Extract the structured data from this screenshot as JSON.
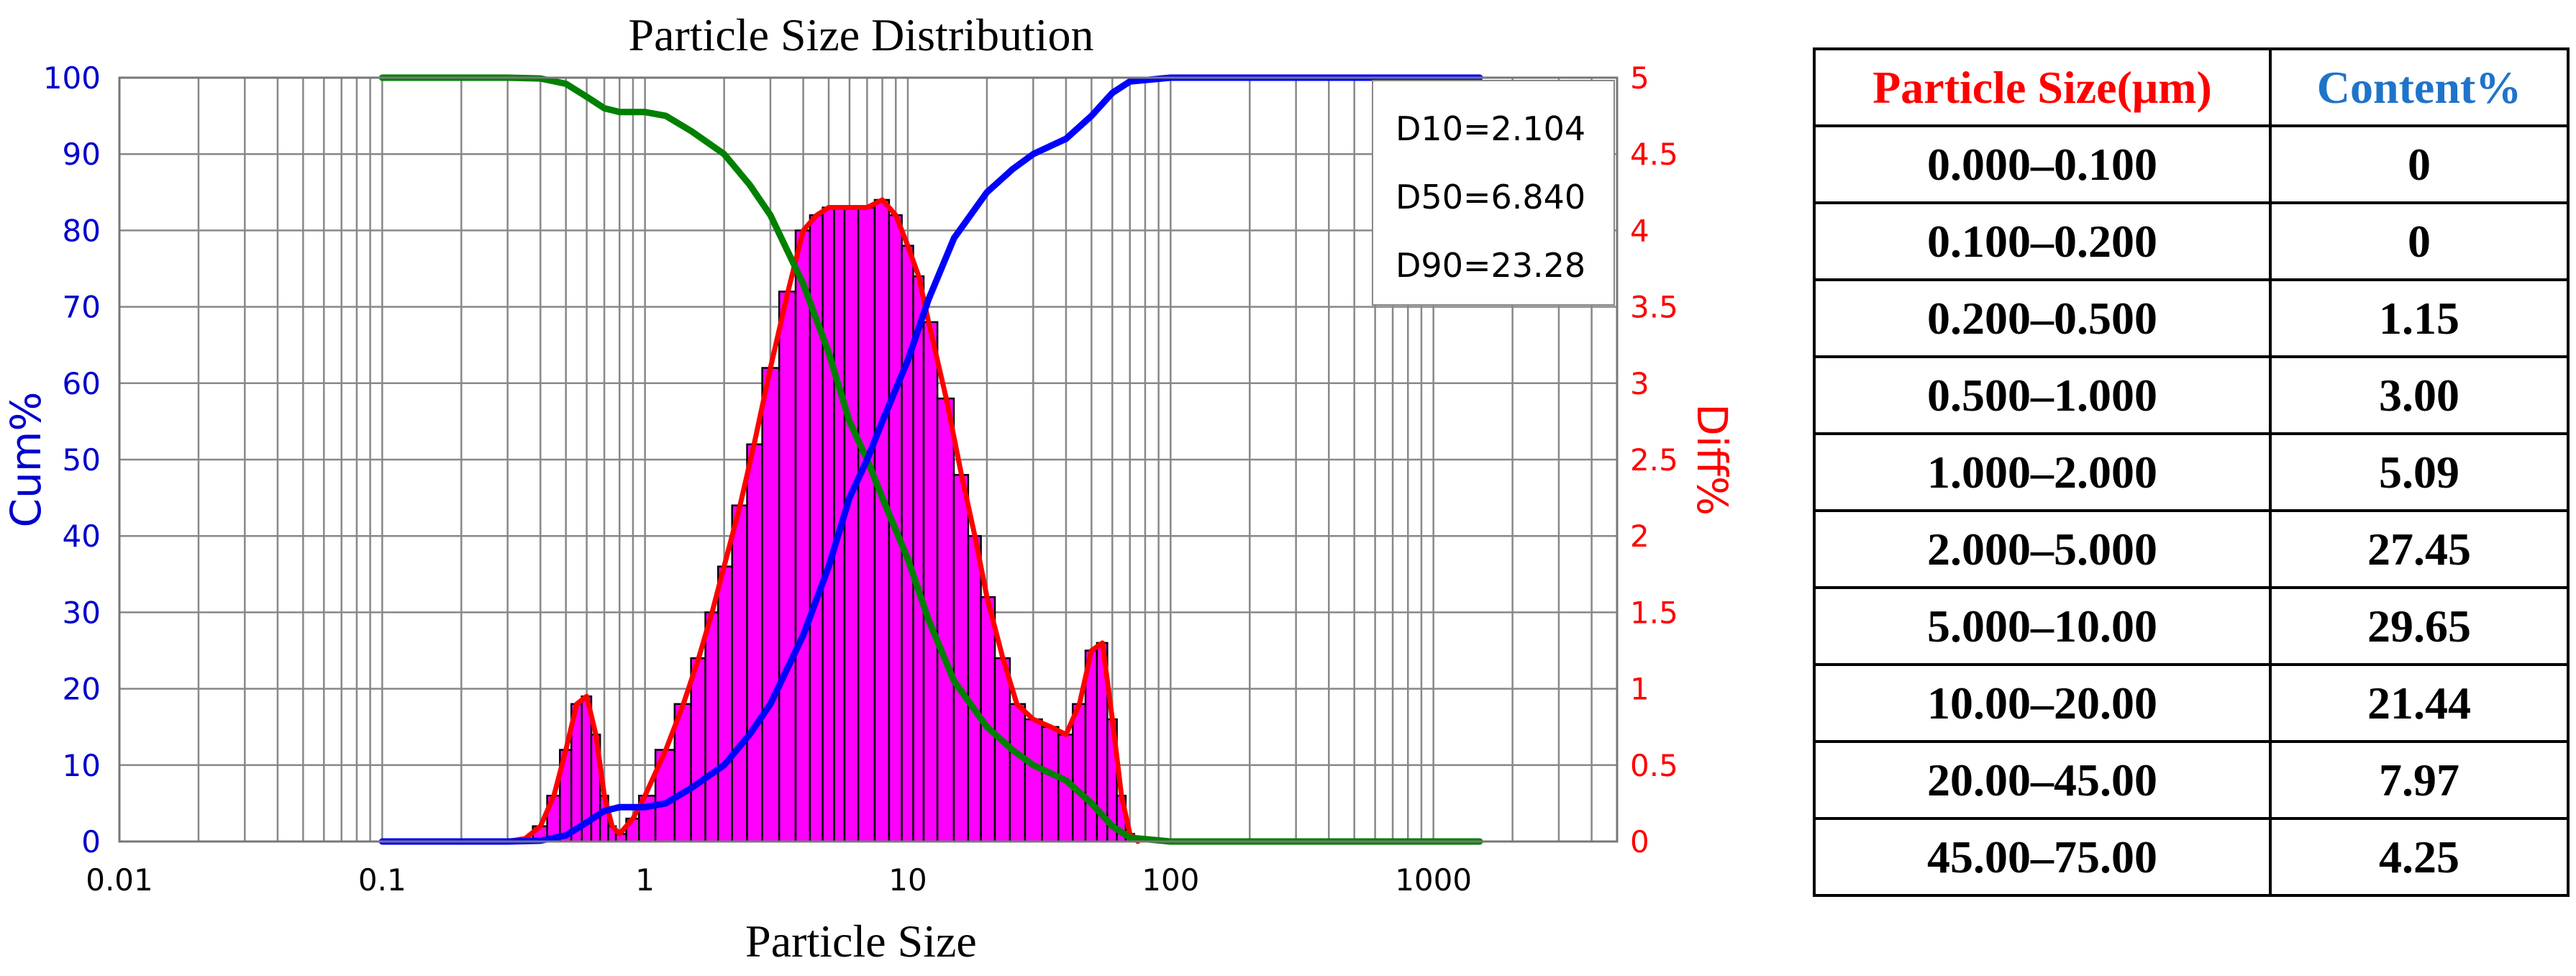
{
  "chart_data": {
    "type": "bar+line",
    "title": "Particle Size Distribution",
    "xlabel": "Particle Size",
    "ylabel_left": "Cum%",
    "ylabel_right": "Diff%",
    "x_scale": "log",
    "xlim": [
      0.01,
      5000
    ],
    "ylim_left": [
      0,
      100
    ],
    "ylim_right": [
      0,
      5
    ],
    "x_ticks": [
      0.01,
      0.1,
      1,
      10,
      100,
      1000
    ],
    "x_tick_labels": [
      "0.01",
      "0.1",
      "1",
      "10",
      "100",
      "1000"
    ],
    "y_left_ticks": [
      0,
      10,
      20,
      30,
      40,
      50,
      60,
      70,
      80,
      90,
      100
    ],
    "y_left_tick_labels": [
      "0",
      "10",
      "20",
      "30",
      "40",
      "50",
      "60",
      "70",
      "80",
      "90",
      "100"
    ],
    "y_right_ticks": [
      0,
      0.5,
      1,
      1.5,
      2,
      2.5,
      3,
      3.5,
      4,
      4.5,
      5
    ],
    "y_right_tick_labels": [
      "0",
      "0.5",
      "1",
      "1.5",
      "2",
      "2.5",
      "3",
      "3.5",
      "4",
      "4.5",
      "5"
    ],
    "grid": true,
    "colors": {
      "cumulative": "#0000ff",
      "retained": "#008000",
      "differential_line": "#ff0000",
      "bar_fill": "#ff00ff",
      "bar_edge": "#000000",
      "left_axis_text": "#0000cc",
      "right_axis_text": "#ff0000"
    },
    "annotations": [
      "D10=2.104",
      "D50=6.840",
      "D90=23.28"
    ],
    "series": [
      {
        "type": "line",
        "axis": "left",
        "x": [
          0.1,
          0.2,
          0.3,
          0.4,
          0.5,
          0.6,
          0.7,
          0.8,
          1.0,
          1.2,
          1.5,
          2.0,
          2.5,
          3.0,
          4.0,
          5.0,
          6.0,
          7.0,
          8.0,
          10,
          12,
          15,
          20,
          25,
          30,
          40,
          50,
          60,
          70,
          100,
          200,
          500,
          1000,
          1500
        ],
        "values": [
          0,
          0,
          0,
          0.1,
          0.8,
          2.5,
          4.0,
          4.5,
          4.5,
          5.0,
          7.0,
          10,
          14,
          18,
          27,
          36,
          45,
          50,
          55,
          63,
          71,
          79,
          85,
          88,
          90,
          92,
          95,
          98,
          99.5,
          100,
          100,
          100,
          100,
          100
        ]
      },
      {
        "type": "line",
        "axis": "left",
        "x": [
          0.1,
          0.2,
          0.3,
          0.4,
          0.5,
          0.6,
          0.7,
          0.8,
          1.0,
          1.2,
          1.5,
          2.0,
          2.5,
          3.0,
          4.0,
          5.0,
          6.0,
          7.0,
          8.0,
          10,
          12,
          15,
          20,
          25,
          30,
          40,
          50,
          60,
          70,
          100,
          200,
          500,
          1000,
          1500
        ],
        "values": [
          100,
          100,
          100,
          99.9,
          99.2,
          97.5,
          96.0,
          95.5,
          95.5,
          95.0,
          93.0,
          90,
          86,
          82,
          73,
          64,
          55,
          50,
          45,
          37,
          29,
          21,
          15,
          12,
          10,
          8,
          5,
          2,
          0.5,
          0,
          0,
          0,
          0,
          0
        ]
      },
      {
        "type": "bar",
        "axis": "right",
        "x": [
          0.35,
          0.4,
          0.45,
          0.5,
          0.55,
          0.6,
          0.65,
          0.7,
          0.75,
          0.8,
          0.9,
          1.0,
          1.2,
          1.4,
          1.6,
          1.8,
          2.0,
          2.3,
          2.6,
          3.0,
          3.5,
          4.0,
          4.5,
          5.0,
          5.5,
          6.0,
          7.0,
          8.0,
          9.0,
          10,
          11,
          12,
          14,
          16,
          18,
          20,
          23,
          26,
          30,
          35,
          40,
          45,
          50,
          55,
          60,
          65,
          70
        ],
        "values": [
          0.02,
          0.1,
          0.3,
          0.6,
          0.9,
          0.95,
          0.7,
          0.3,
          0.1,
          0.05,
          0.15,
          0.3,
          0.6,
          0.9,
          1.2,
          1.5,
          1.8,
          2.2,
          2.6,
          3.1,
          3.6,
          4.0,
          4.1,
          4.15,
          4.15,
          4.15,
          4.15,
          4.2,
          4.1,
          3.9,
          3.7,
          3.4,
          2.9,
          2.4,
          2.0,
          1.6,
          1.2,
          0.9,
          0.8,
          0.75,
          0.7,
          0.9,
          1.25,
          1.3,
          0.8,
          0.3,
          0.05
        ]
      },
      {
        "type": "line",
        "axis": "right",
        "x": [
          0.3,
          0.35,
          0.4,
          0.45,
          0.5,
          0.55,
          0.6,
          0.65,
          0.7,
          0.75,
          0.8,
          0.9,
          1.0,
          1.2,
          1.4,
          1.6,
          1.8,
          2.0,
          2.3,
          2.6,
          3.0,
          3.5,
          4.0,
          4.5,
          5.0,
          5.5,
          6.0,
          7.0,
          8.0,
          9.0,
          10,
          11,
          12,
          14,
          16,
          18,
          20,
          23,
          26,
          30,
          35,
          40,
          45,
          50,
          55,
          60,
          65,
          70,
          75
        ],
        "values": [
          0,
          0.02,
          0.1,
          0.3,
          0.6,
          0.9,
          0.95,
          0.7,
          0.3,
          0.1,
          0.05,
          0.15,
          0.3,
          0.6,
          0.9,
          1.2,
          1.5,
          1.8,
          2.2,
          2.6,
          3.1,
          3.6,
          4.0,
          4.1,
          4.15,
          4.15,
          4.15,
          4.15,
          4.2,
          4.1,
          3.9,
          3.7,
          3.4,
          2.9,
          2.4,
          2.0,
          1.6,
          1.2,
          0.9,
          0.8,
          0.75,
          0.7,
          0.9,
          1.25,
          1.3,
          0.8,
          0.3,
          0.05,
          0
        ]
      }
    ]
  },
  "table": {
    "headers": [
      "Particle Size(μm)",
      "Content%"
    ],
    "rows": [
      [
        "0.000–0.100",
        "0"
      ],
      [
        "0.100–0.200",
        "0"
      ],
      [
        "0.200–0.500",
        "1.15"
      ],
      [
        "0.500–1.000",
        "3.00"
      ],
      [
        "1.000–2.000",
        "5.09"
      ],
      [
        "2.000–5.000",
        "27.45"
      ],
      [
        "5.000–10.00",
        "29.65"
      ],
      [
        "10.00–20.00",
        "21.44"
      ],
      [
        "20.00–45.00",
        "7.97"
      ],
      [
        "45.00–75.00",
        "4.25"
      ]
    ]
  }
}
